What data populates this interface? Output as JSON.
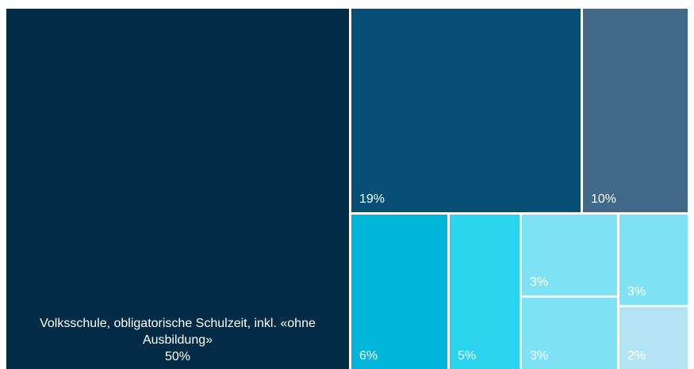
{
  "chart_data": {
    "type": "treemap",
    "items": [
      {
        "id": "t1",
        "name": "Volksschule, obligatorische Schulzeit, inkl. «ohne Ausbildung»",
        "value": 50,
        "label": "50%",
        "color": "#022c45",
        "text_color": "#ffffff"
      },
      {
        "id": "t2",
        "name": "",
        "value": 19,
        "label": "19%",
        "color": "#054f74",
        "text_color": "#ffffff"
      },
      {
        "id": "t3",
        "name": "",
        "value": 10,
        "label": "10%",
        "color": "#426888",
        "text_color": "#ffffff"
      },
      {
        "id": "t4",
        "name": "",
        "value": 6,
        "label": "6%",
        "color": "#01b6d8",
        "text_color": "#ffffff"
      },
      {
        "id": "t5",
        "name": "",
        "value": 5,
        "label": "5%",
        "color": "#2ad3ee",
        "text_color": "#ffffff"
      },
      {
        "id": "t6",
        "name": "",
        "value": 3,
        "label": "3%",
        "color": "#7fe2f4",
        "text_color": "#ffffff"
      },
      {
        "id": "t7",
        "name": "",
        "value": 3,
        "label": "3%",
        "color": "#7fe2f4",
        "text_color": "#ffffff"
      },
      {
        "id": "t8",
        "name": "",
        "value": 3,
        "label": "3%",
        "color": "#7fe2f4",
        "text_color": "#ffffff"
      },
      {
        "id": "t9",
        "name": "",
        "value": 2,
        "label": "2%",
        "color": "#b4e4f4",
        "text_color": "#ffffff"
      }
    ]
  }
}
